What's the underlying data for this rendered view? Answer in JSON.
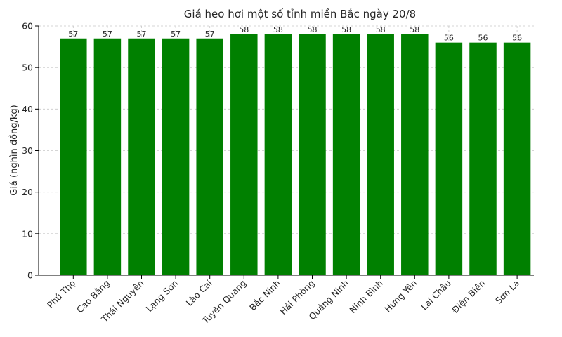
{
  "chart_data": {
    "type": "bar",
    "title": "Giá heo hơi một số tỉnh miền Bắc ngày 20/8",
    "xlabel": "",
    "ylabel": "Giá (nghìn đồng/kg)",
    "ylim": [
      0,
      60
    ],
    "yticks": [
      0,
      10,
      20,
      30,
      40,
      50,
      60
    ],
    "grid": true,
    "bar_color": "#008000",
    "categories": [
      "Phú Thọ",
      "Cao Bằng",
      "Thái Nguyên",
      "Lạng Sơn",
      "Lào Cai",
      "Tuyên Quang",
      "Bắc Ninh",
      "Hải Phòng",
      "Quảng Ninh",
      "Ninh Bình",
      "Hưng Yên",
      "Lai Châu",
      "Điện Biên",
      "Sơn La"
    ],
    "values": [
      57,
      57,
      57,
      57,
      57,
      58,
      58,
      58,
      58,
      58,
      58,
      56,
      56,
      56
    ]
  }
}
